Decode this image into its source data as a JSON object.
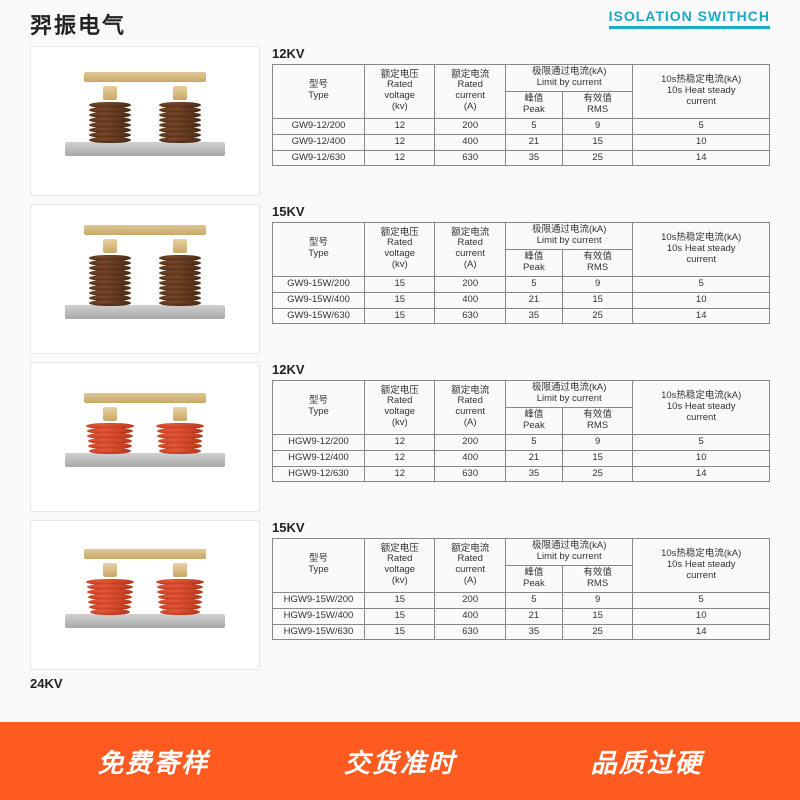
{
  "header": {
    "cn_title": "羿振电气",
    "en_title": "ISOLATION SWITHCH"
  },
  "columns": {
    "type": "型号\nType",
    "voltage": "额定电压\nRated\nvoltage\n(kv)",
    "current": "额定电流\nRated\ncurrent\n(A)",
    "limit_group": "极限通过电流(kA)\nLimit by current",
    "peak": "峰值\nPeak",
    "rms": "有效值\nRMS",
    "heat": "10s热稳定电流(kA)\n10s Heat steady\ncurrent"
  },
  "sections": [
    {
      "kv_label": "12KV",
      "insulator_color": "brown",
      "disc_count": 8,
      "disc_width": 42,
      "rows": [
        {
          "type": "GW9-12/200",
          "v": "12",
          "c": "200",
          "peak": "5",
          "rms": "9",
          "heat": "5"
        },
        {
          "type": "GW9-12/400",
          "v": "12",
          "c": "400",
          "peak": "21",
          "rms": "15",
          "heat": "10"
        },
        {
          "type": "GW9-12/630",
          "v": "12",
          "c": "630",
          "peak": "35",
          "rms": "25",
          "heat": "14"
        }
      ]
    },
    {
      "kv_label": "15KV",
      "insulator_color": "brown",
      "disc_count": 10,
      "disc_width": 42,
      "rows": [
        {
          "type": "GW9-15W/200",
          "v": "15",
          "c": "200",
          "peak": "5",
          "rms": "9",
          "heat": "5"
        },
        {
          "type": "GW9-15W/400",
          "v": "15",
          "c": "400",
          "peak": "21",
          "rms": "15",
          "heat": "10"
        },
        {
          "type": "GW9-15W/630",
          "v": "15",
          "c": "630",
          "peak": "35",
          "rms": "25",
          "heat": "14"
        }
      ]
    },
    {
      "kv_label": "12KV",
      "insulator_color": "red",
      "disc_count": 6,
      "disc_width": 48,
      "rows": [
        {
          "type": "HGW9-12/200",
          "v": "12",
          "c": "200",
          "peak": "5",
          "rms": "9",
          "heat": "5"
        },
        {
          "type": "HGW9-12/400",
          "v": "12",
          "c": "400",
          "peak": "21",
          "rms": "15",
          "heat": "10"
        },
        {
          "type": "HGW9-12/630",
          "v": "12",
          "c": "630",
          "peak": "35",
          "rms": "25",
          "heat": "14"
        }
      ]
    },
    {
      "kv_label": "15KV",
      "insulator_color": "red",
      "disc_count": 7,
      "disc_width": 48,
      "rows": [
        {
          "type": "HGW9-15W/200",
          "v": "15",
          "c": "200",
          "peak": "5",
          "rms": "9",
          "heat": "5"
        },
        {
          "type": "HGW9-15W/400",
          "v": "15",
          "c": "400",
          "peak": "21",
          "rms": "15",
          "heat": "10"
        },
        {
          "type": "HGW9-15W/630",
          "v": "15",
          "c": "630",
          "peak": "35",
          "rms": "25",
          "heat": "14"
        }
      ]
    }
  ],
  "partial_label": "24KV",
  "footer": {
    "items": [
      "免费寄样",
      "交货准时",
      "品质过硬"
    ]
  },
  "colors": {
    "accent": "#1aa9c9",
    "footer_bg": "#ff5a1f",
    "footer_text": "#ffffff",
    "table_border": "#888888"
  }
}
